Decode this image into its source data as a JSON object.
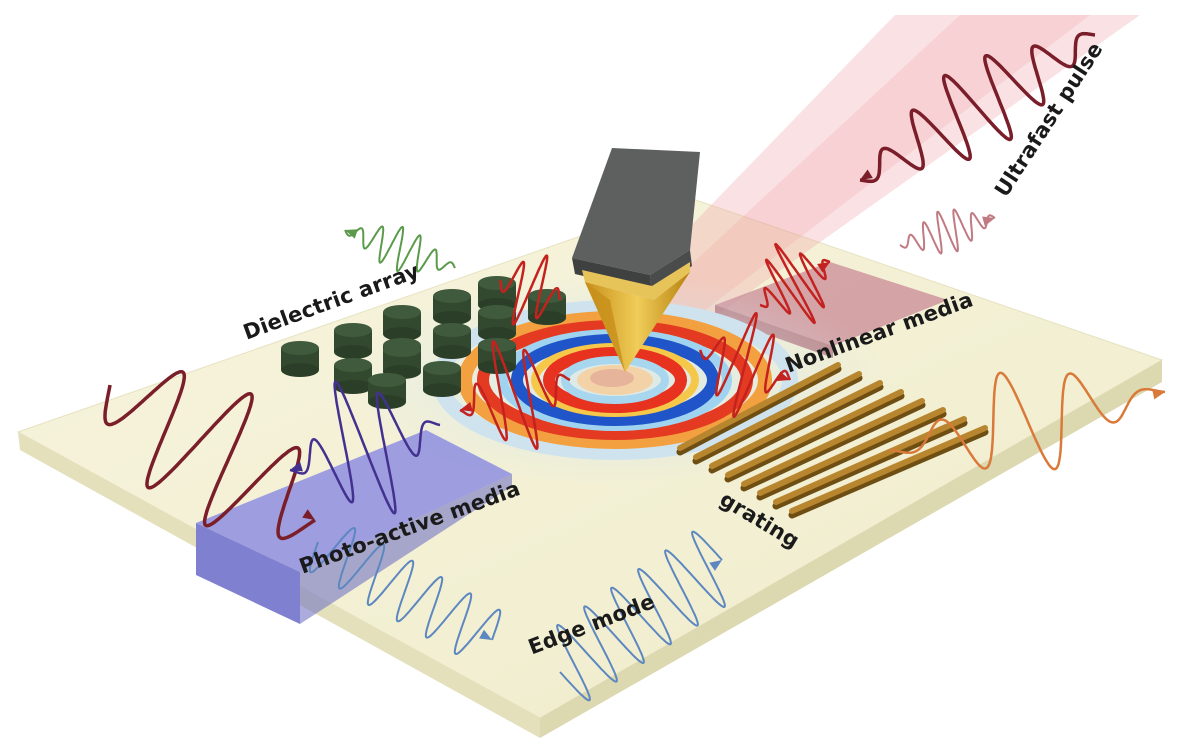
{
  "labels": {
    "ultrafast_pulse": "Ultrafast pulse",
    "dielectric_array": "Dielectric array",
    "nonlinear_media": "Nonlinear media",
    "photo_active_media": "Photo-active media",
    "grating": "grating",
    "edge_mode": "Edge mode"
  },
  "colors": {
    "substrate_top": "#f3f0d6",
    "substrate_side": "#ebe8c4",
    "pulse_dark_red": "#7a1e2a",
    "pulse_red": "#c4221f",
    "wave_green": "#5a9a4a",
    "wave_pink": "#c07a82",
    "wave_blue": "#5d87c0",
    "wave_purple": "#43318f",
    "wave_orange": "#d97a3a",
    "photo_active": "#8d8ee0",
    "nonlinear": "#c07080",
    "pillar": "#3f5a3c",
    "grating_bar": "#b8862e",
    "tip_body": "#5e6060",
    "tip_gold": "#e0b840"
  },
  "icons": {
    "probe": "afm-tip-icon"
  }
}
